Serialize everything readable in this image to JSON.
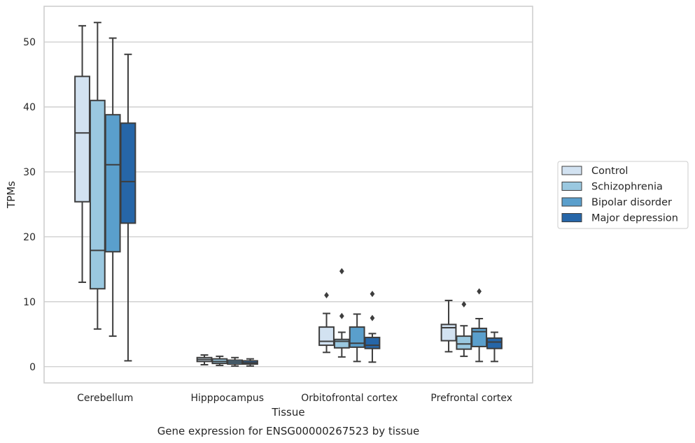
{
  "chart_data": {
    "type": "box",
    "caption": "Gene expression for ENSG00000267523 by tissue",
    "xlabel": "Tissue",
    "ylabel": "TPMs",
    "ylim": [
      -2.5,
      55.5
    ],
    "yticks": [
      0,
      10,
      20,
      30,
      40,
      50
    ],
    "grid": true,
    "legend_position": "right",
    "categories": [
      "Cerebellum",
      "Hipppocampus",
      "Orbitofrontal cortex",
      "Prefrontal cortex"
    ],
    "series": [
      {
        "name": "Control",
        "color": "#d2e2f1",
        "boxes": [
          {
            "whislo": 13.0,
            "q1": 25.4,
            "med": 36.0,
            "q3": 44.7,
            "whishi": 52.5,
            "fliers": []
          },
          {
            "whislo": 0.3,
            "q1": 0.8,
            "med": 1.1,
            "q3": 1.4,
            "whishi": 1.8,
            "fliers": []
          },
          {
            "whislo": 2.2,
            "q1": 3.3,
            "med": 3.9,
            "q3": 6.1,
            "whishi": 8.2,
            "fliers": [
              11.0
            ]
          },
          {
            "whislo": 2.3,
            "q1": 4.0,
            "med": 6.0,
            "q3": 6.5,
            "whishi": 10.2,
            "fliers": []
          }
        ]
      },
      {
        "name": "Schizophrenia",
        "color": "#9ac8e0",
        "boxes": [
          {
            "whislo": 5.8,
            "q1": 12.0,
            "med": 17.9,
            "q3": 41.0,
            "whishi": 53.0,
            "fliers": []
          },
          {
            "whislo": 0.2,
            "q1": 0.5,
            "med": 0.8,
            "q3": 1.2,
            "whishi": 1.6,
            "fliers": []
          },
          {
            "whislo": 1.5,
            "q1": 2.9,
            "med": 3.9,
            "q3": 4.2,
            "whishi": 5.3,
            "fliers": [
              7.8,
              14.7
            ]
          },
          {
            "whislo": 1.6,
            "q1": 2.7,
            "med": 3.5,
            "q3": 4.7,
            "whishi": 6.3,
            "fliers": [
              9.6
            ]
          }
        ]
      },
      {
        "name": "Bipolar disorder",
        "color": "#5a9fcc",
        "boxes": [
          {
            "whislo": 4.7,
            "q1": 17.7,
            "med": 31.1,
            "q3": 38.8,
            "whishi": 50.6,
            "fliers": []
          },
          {
            "whislo": 0.1,
            "q1": 0.4,
            "med": 0.7,
            "q3": 1.0,
            "whishi": 1.4,
            "fliers": []
          },
          {
            "whislo": 0.8,
            "q1": 3.0,
            "med": 3.6,
            "q3": 6.1,
            "whishi": 8.1,
            "fliers": []
          },
          {
            "whislo": 0.8,
            "q1": 3.1,
            "med": 5.4,
            "q3": 5.9,
            "whishi": 7.4,
            "fliers": [
              11.6
            ]
          }
        ]
      },
      {
        "name": "Major depression",
        "color": "#2666a8",
        "boxes": [
          {
            "whislo": 0.9,
            "q1": 22.1,
            "med": 28.5,
            "q3": 37.5,
            "whishi": 48.1,
            "fliers": []
          },
          {
            "whislo": 0.1,
            "q1": 0.4,
            "med": 0.6,
            "q3": 0.9,
            "whishi": 1.2,
            "fliers": []
          },
          {
            "whislo": 0.7,
            "q1": 2.8,
            "med": 3.3,
            "q3": 4.5,
            "whishi": 5.1,
            "fliers": [
              7.5,
              11.2
            ]
          },
          {
            "whislo": 0.8,
            "q1": 2.8,
            "med": 3.8,
            "q3": 4.4,
            "whishi": 5.3,
            "fliers": []
          }
        ]
      }
    ],
    "style": {
      "edge_color": "#3d3d3d",
      "grid_color": "#cccccc",
      "frame_color": "#cccccc",
      "background": "#ffffff"
    }
  }
}
